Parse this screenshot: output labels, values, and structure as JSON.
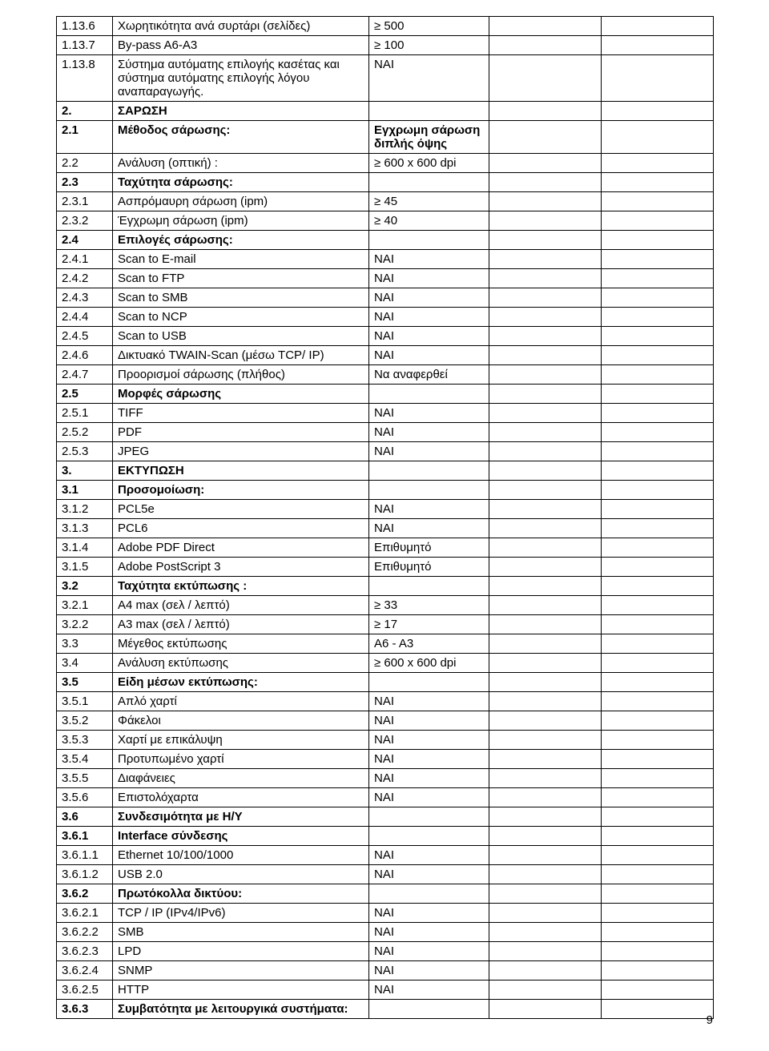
{
  "page_number": "9",
  "rows": [
    {
      "c1": "1.13.6",
      "c2": "Χωρητικότητα ανά συρτάρι (σελίδες)",
      "c3": "≥ 500",
      "c4": "",
      "c5": "",
      "bold": false
    },
    {
      "c1": "1.13.7",
      "c2": "By-pass  A6-A3",
      "c3": "≥ 100",
      "c4": "",
      "c5": "",
      "bold": false
    },
    {
      "c1": "1.13.8",
      "c2": "Σύστημα αυτόματης επιλογής κασέτας και σύστημα αυτόματης επιλογής λόγου αναπαραγωγής.",
      "c3": "ΝΑΙ",
      "c4": "",
      "c5": "",
      "bold": false
    },
    {
      "c1": "2.",
      "c2": "ΣΑΡΩΣΗ",
      "c3": "",
      "c4": "",
      "c5": "",
      "bold": true
    },
    {
      "c1": "2.1",
      "c2": "Μέθοδος σάρωσης:",
      "c3": "Εγχρωμη σάρωση διπλής όψης",
      "c4": "",
      "c5": "",
      "bold": true
    },
    {
      "c1": "2.2",
      "c2": "Ανάλυση (οπτική) :",
      "c3": "≥ 600  x 600 dpi",
      "c4": "",
      "c5": "",
      "bold": false
    },
    {
      "c1": "2.3",
      "c2": "Ταχύτητα σάρωσης:",
      "c3": "",
      "c4": "",
      "c5": "",
      "bold": true
    },
    {
      "c1": "2.3.1",
      "c2": "Ασπρόμαυρη σάρωση (ipm)",
      "c3": "≥ 45",
      "c4": "",
      "c5": "",
      "bold": false
    },
    {
      "c1": "2.3.2",
      "c2": "Έγχρωμη σάρωση (ipm)",
      "c3": "≥ 40",
      "c4": "",
      "c5": "",
      "bold": false
    },
    {
      "c1": "2.4",
      "c2": "Επιλογές σάρωσης:",
      "c3": "",
      "c4": "",
      "c5": "",
      "bold": true
    },
    {
      "c1": "2.4.1",
      "c2": "Scan to E-mail",
      "c3": "ΝΑΙ",
      "c4": "",
      "c5": "",
      "bold": false
    },
    {
      "c1": "2.4.2",
      "c2": "Scan to FTP",
      "c3": "ΝΑΙ",
      "c4": "",
      "c5": "",
      "bold": false
    },
    {
      "c1": "2.4.3",
      "c2": "Scan to SMB",
      "c3": "ΝΑΙ",
      "c4": "",
      "c5": "",
      "bold": false
    },
    {
      "c1": "2.4.4",
      "c2": "Scan to NCP",
      "c3": "ΝΑΙ",
      "c4": "",
      "c5": "",
      "bold": false
    },
    {
      "c1": "2.4.5",
      "c2": "Scan to USB",
      "c3": "ΝΑΙ",
      "c4": "",
      "c5": "",
      "bold": false
    },
    {
      "c1": "2.4.6",
      "c2": "Δικτυακό TWAIN-Scan (μέσω TCP/ IP)",
      "c3": "ΝΑΙ",
      "c4": "",
      "c5": "",
      "bold": false
    },
    {
      "c1": "2.4.7",
      "c2": "Προορισμοί σάρωσης (πλήθος)",
      "c3": "Να αναφερθεί",
      "c4": "",
      "c5": "",
      "bold": false
    },
    {
      "c1": "2.5",
      "c2": "Μορφές σάρωσης",
      "c3": "",
      "c4": "",
      "c5": "",
      "bold": true
    },
    {
      "c1": "2.5.1",
      "c2": "TIFF",
      "c3": "ΝΑΙ",
      "c4": "",
      "c5": "",
      "bold": false
    },
    {
      "c1": "2.5.2",
      "c2": "PDF",
      "c3": "ΝΑΙ",
      "c4": "",
      "c5": "",
      "bold": false
    },
    {
      "c1": "2.5.3",
      "c2": "JPEG",
      "c3": "ΝΑΙ",
      "c4": "",
      "c5": "",
      "bold": false
    },
    {
      "c1": "3.",
      "c2": "ΕΚΤΥΠΩΣΗ",
      "c3": "",
      "c4": "",
      "c5": "",
      "bold": true
    },
    {
      "c1": "3.1",
      "c2": "Προσομοίωση:",
      "c3": "",
      "c4": "",
      "c5": "",
      "bold": true
    },
    {
      "c1": "3.1.2",
      "c2": "PCL5e",
      "c3": "ΝΑΙ",
      "c4": "",
      "c5": "",
      "bold": false
    },
    {
      "c1": "3.1.3",
      "c2": "PCL6",
      "c3": "ΝΑΙ",
      "c4": "",
      "c5": "",
      "bold": false
    },
    {
      "c1": "3.1.4",
      "c2": "Adobe PDF Direct",
      "c3": "Επιθυμητό",
      "c4": "",
      "c5": "",
      "bold": false
    },
    {
      "c1": "3.1.5",
      "c2": "Adobe PostScript 3",
      "c3": "Επιθυμητό",
      "c4": "",
      "c5": "",
      "bold": false
    },
    {
      "c1": "3.2",
      "c2": "Ταχύτητα εκτύπωσης :",
      "c3": "",
      "c4": "",
      "c5": "",
      "bold": true
    },
    {
      "c1": "3.2.1",
      "c2": "Α4 max (σελ / λεπτό)",
      "c3": "≥ 33",
      "c4": "",
      "c5": "",
      "bold": false
    },
    {
      "c1": "3.2.2",
      "c2": "Α3 max (σελ / λεπτό)",
      "c3": "≥ 17",
      "c4": "",
      "c5": "",
      "bold": false
    },
    {
      "c1": "3.3",
      "c2": "Μέγεθος εκτύπωσης",
      "c3": "A6 - A3",
      "c4": "",
      "c5": "",
      "bold": false
    },
    {
      "c1": "3.4",
      "c2": "Ανάλυση εκτύπωσης",
      "c3": "≥ 600 x 600 dpi",
      "c4": "",
      "c5": "",
      "bold": false
    },
    {
      "c1": "3.5",
      "c2": "Είδη μέσων εκτύπωσης:",
      "c3": "",
      "c4": "",
      "c5": "",
      "bold": true
    },
    {
      "c1": "3.5.1",
      "c2": "Απλό χαρτί",
      "c3": "ΝΑΙ",
      "c4": "",
      "c5": "",
      "bold": false
    },
    {
      "c1": "3.5.2",
      "c2": "Φάκελοι",
      "c3": "ΝΑΙ",
      "c4": "",
      "c5": "",
      "bold": false
    },
    {
      "c1": "3.5.3",
      "c2": "Χαρτί με επικάλυψη",
      "c3": "ΝΑΙ",
      "c4": "",
      "c5": "",
      "bold": false
    },
    {
      "c1": "3.5.4",
      "c2": "Προτυπωμένο χαρτί",
      "c3": "ΝΑΙ",
      "c4": "",
      "c5": "",
      "bold": false
    },
    {
      "c1": "3.5.5",
      "c2": "Διαφάνειες",
      "c3": "ΝΑΙ",
      "c4": "",
      "c5": "",
      "bold": false
    },
    {
      "c1": "3.5.6",
      "c2": "Επιστολόχαρτα",
      "c3": "ΝΑΙ",
      "c4": "",
      "c5": "",
      "bold": false
    },
    {
      "c1": "3.6",
      "c2": "Συνδεσιμότητα με Η/Υ",
      "c3": "",
      "c4": "",
      "c5": "",
      "bold": true
    },
    {
      "c1": "3.6.1",
      "c2": "Interface σύνδεσης",
      "c3": "",
      "c4": "",
      "c5": "",
      "bold": true
    },
    {
      "c1": "3.6.1.1",
      "c2": "Ethernet 10/100/1000",
      "c3": "ΝΑΙ",
      "c4": "",
      "c5": "",
      "bold": false
    },
    {
      "c1": "3.6.1.2",
      "c2": "USB 2.0",
      "c3": "ΝΑΙ",
      "c4": "",
      "c5": "",
      "bold": false
    },
    {
      "c1": "3.6.2",
      "c2": "Πρωτόκολλα δικτύου:",
      "c3": "",
      "c4": "",
      "c5": "",
      "bold": true
    },
    {
      "c1": "3.6.2.1",
      "c2": "TCP / IP (IPv4/IPv6)",
      "c3": "ΝΑΙ",
      "c4": "",
      "c5": "",
      "bold": false
    },
    {
      "c1": "3.6.2.2",
      "c2": "SMB",
      "c3": "ΝΑΙ",
      "c4": "",
      "c5": "",
      "bold": false
    },
    {
      "c1": "3.6.2.3",
      "c2": "LPD",
      "c3": "ΝΑΙ",
      "c4": "",
      "c5": "",
      "bold": false
    },
    {
      "c1": "3.6.2.4",
      "c2": "SNMP",
      "c3": "ΝΑΙ",
      "c4": "",
      "c5": "",
      "bold": false
    },
    {
      "c1": "3.6.2.5",
      "c2": "HTTP",
      "c3": "ΝΑΙ",
      "c4": "",
      "c5": "",
      "bold": false
    },
    {
      "c1": "3.6.3",
      "c2": "Συμβατότητα με λειτουργικά συστήματα:",
      "c3": "",
      "c4": "",
      "c5": "",
      "bold": true
    }
  ]
}
